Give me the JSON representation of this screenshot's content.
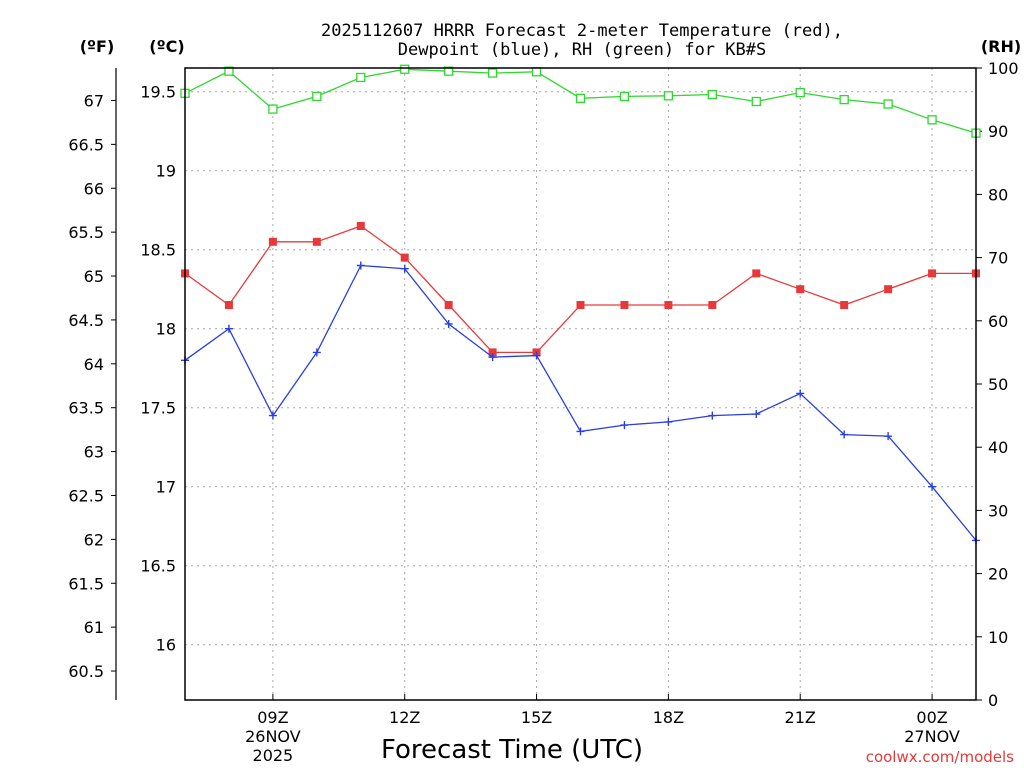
{
  "chart_data": {
    "type": "line",
    "title_line1": "2025112607 HRRR Forecast 2-meter Temperature (red),",
    "title_line2": "Dewpoint (blue), RH (green) for KB#S",
    "xlabel": "Forecast Time (UTC)",
    "unit_f": "(ºF)",
    "unit_c": "(ºC)",
    "unit_rh": "(RH)",
    "credit": "coolwx.com/models",
    "x_hours": [
      7,
      8,
      9,
      10,
      11,
      12,
      13,
      14,
      15,
      16,
      17,
      18,
      19,
      20,
      21,
      22,
      23,
      24,
      25
    ],
    "xlim": [
      7,
      25
    ],
    "x_ticks": [
      {
        "hour": 9,
        "label": "09Z",
        "date": "26NOV",
        "year": "2025"
      },
      {
        "hour": 12,
        "label": "12Z"
      },
      {
        "hour": 15,
        "label": "15Z"
      },
      {
        "hour": 18,
        "label": "18Z"
      },
      {
        "hour": 21,
        "label": "21Z"
      },
      {
        "hour": 24,
        "label": "00Z",
        "date": "27NOV"
      }
    ],
    "c_axis": {
      "range": [
        15.65,
        19.65
      ],
      "ticks": [
        "16",
        "16.5",
        "17",
        "17.5",
        "18",
        "18.5",
        "19",
        "19.5"
      ]
    },
    "f_axis": {
      "range": [
        60.17,
        67.37
      ],
      "ticks": [
        "60.5",
        "61",
        "61.5",
        "62",
        "62.5",
        "63",
        "63.5",
        "64",
        "64.5",
        "65",
        "65.5",
        "66",
        "66.5",
        "67"
      ]
    },
    "rh_axis": {
      "range": [
        0,
        100
      ],
      "ticks": [
        "0",
        "10",
        "20",
        "30",
        "40",
        "50",
        "60",
        "70",
        "80",
        "90",
        "100"
      ]
    },
    "series": [
      {
        "name": "Temperature",
        "color": "#e8393a",
        "axis": "c",
        "marker": "square-filled",
        "values": [
          18.35,
          18.15,
          18.55,
          18.55,
          18.65,
          18.45,
          18.15,
          17.85,
          17.85,
          18.15,
          18.15,
          18.15,
          18.15,
          18.35,
          18.25,
          18.15,
          18.25,
          18.35,
          18.35
        ]
      },
      {
        "name": "Dewpoint",
        "color": "#2a3fe0",
        "axis": "c",
        "marker": "plus",
        "values": [
          17.8,
          18.0,
          17.45,
          17.85,
          18.4,
          18.38,
          18.03,
          17.82,
          17.83,
          17.35,
          17.39,
          17.41,
          17.45,
          17.46,
          17.59,
          17.33,
          17.32,
          17.0,
          16.66
        ]
      },
      {
        "name": "RH",
        "color": "#2ed82e",
        "axis": "rh",
        "marker": "square-open",
        "values": [
          96,
          99.5,
          93.5,
          95.5,
          98.5,
          99.8,
          99.5,
          99.2,
          99.4,
          95.2,
          95.5,
          95.6,
          95.8,
          94.7,
          96.1,
          95.0,
          94.3,
          91.8,
          89.7
        ]
      }
    ]
  }
}
